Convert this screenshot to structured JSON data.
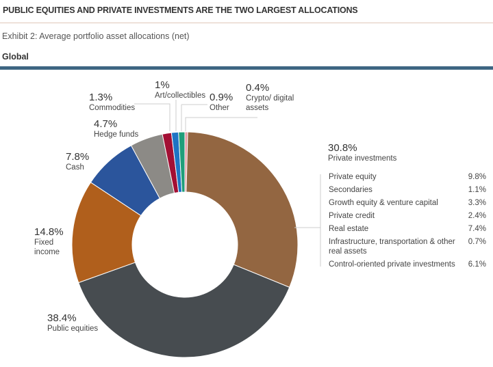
{
  "header": {
    "title": "PUBLIC EQUITIES AND PRIVATE INVESTMENTS ARE THE TWO LARGEST ALLOCATIONS",
    "exhibit": "Exhibit 2: Average portfolio asset allocations (net)",
    "region": "Global"
  },
  "chart_data": {
    "type": "pie",
    "subtype": "donut",
    "title": "Exhibit 2: Average portfolio asset allocations (net)",
    "subtitle": "Global",
    "slices": [
      {
        "label": "Crypto/ digital assets",
        "value": 0.4,
        "display": "0.4%",
        "color": "#e59aa4"
      },
      {
        "label": "Private investments",
        "value": 30.8,
        "display": "30.8%",
        "color": "#936641"
      },
      {
        "label": "Public equities",
        "value": 38.4,
        "display": "38.4%",
        "color": "#474c50"
      },
      {
        "label": "Fixed income",
        "value": 14.8,
        "display": "14.8%",
        "color": "#b05f1c"
      },
      {
        "label": "Cash",
        "value": 7.8,
        "display": "7.8%",
        "color": "#2b559c"
      },
      {
        "label": "Hedge funds",
        "value": 4.7,
        "display": "4.7%",
        "color": "#8c8a86"
      },
      {
        "label": "Commodities",
        "value": 1.3,
        "display": "1.3%",
        "color": "#a30f34"
      },
      {
        "label": "Art/collectibles",
        "value": 1,
        "display": "1%",
        "color": "#1f74c4"
      },
      {
        "label": "Other",
        "value": 0.9,
        "display": "0.9%",
        "color": "#1f9e7a"
      }
    ],
    "breakdown": {
      "title": "Private investments",
      "items": [
        {
          "label": "Private equity",
          "value": "9.8%"
        },
        {
          "label": "Secondaries",
          "value": "1.1%"
        },
        {
          "label": "Growth equity & venture capital",
          "value": "3.3%"
        },
        {
          "label": "Private credit",
          "value": "2.4%"
        },
        {
          "label": "Real estate",
          "value": "7.4%"
        },
        {
          "label": "Infrastructure, transportation & other real assets",
          "value": "0.7%"
        },
        {
          "label": "Control-oriented private investments",
          "value": "6.1%"
        }
      ]
    }
  }
}
